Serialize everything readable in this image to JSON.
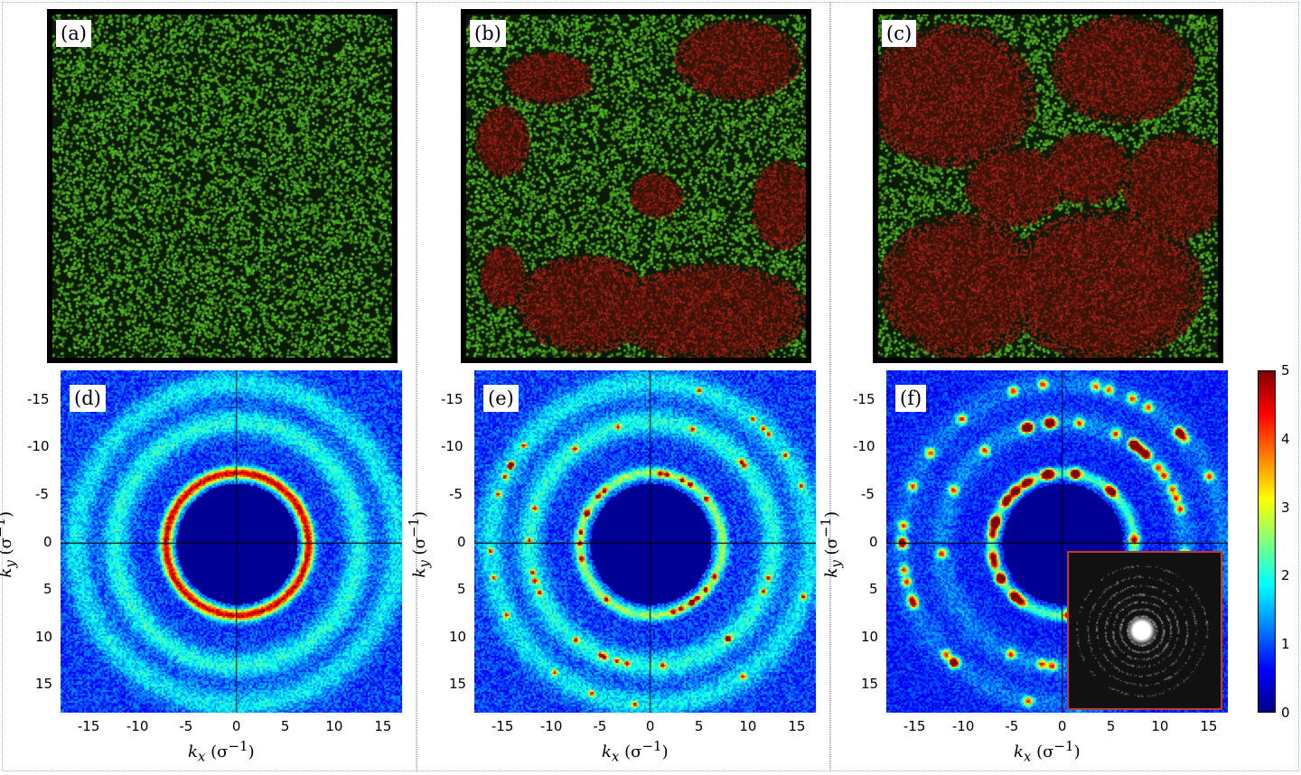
{
  "panels": {
    "a": {
      "label": "(a)"
    },
    "b": {
      "label": "(b)"
    },
    "c": {
      "label": "(c)"
    },
    "d": {
      "label": "(d)"
    },
    "e": {
      "label": "(e)"
    },
    "f": {
      "label": "(f)"
    }
  },
  "axes": {
    "xlabel": "k",
    "xlabel_sub": "x",
    "xlabel_unit": "(σ",
    "ylabel": "k",
    "ylabel_sub": "y",
    "ylabel_unit": "(σ",
    "unit_exp": "−1",
    "unit_close": ")",
    "x_ticks": [
      "-15",
      "-10",
      "-5",
      "0",
      "5",
      "10",
      "15"
    ],
    "y_ticks": [
      "-15",
      "-10",
      "-5",
      "0",
      "5",
      "10",
      "15"
    ]
  },
  "colorbar": {
    "ticks": [
      "5",
      "4",
      "3",
      "2",
      "1",
      "0"
    ],
    "range": [
      0,
      5
    ],
    "colormap": "jet"
  },
  "colors": {
    "liquid_particles": "#4caf2a",
    "crystal_particles": "#8b1a12",
    "inset_border": "#c0392b",
    "background_dark": "#000080"
  },
  "chart_data": [
    {
      "panel": "d",
      "type": "heatmap",
      "xlim": [
        -18,
        17
      ],
      "ylim": [
        -18,
        18
      ],
      "rings": [
        7.3,
        12.5,
        16.5
      ],
      "description_type": "structure-factor"
    },
    {
      "panel": "e",
      "type": "heatmap",
      "xlim": [
        -18,
        17
      ],
      "ylim": [
        -18,
        18
      ],
      "rings": [
        7.3,
        12.5,
        16.5
      ]
    },
    {
      "panel": "f",
      "type": "heatmap",
      "xlim": [
        -18,
        17
      ],
      "ylim": [
        -18,
        18
      ],
      "rings": [
        7.3,
        12.5,
        16.5
      ]
    }
  ]
}
